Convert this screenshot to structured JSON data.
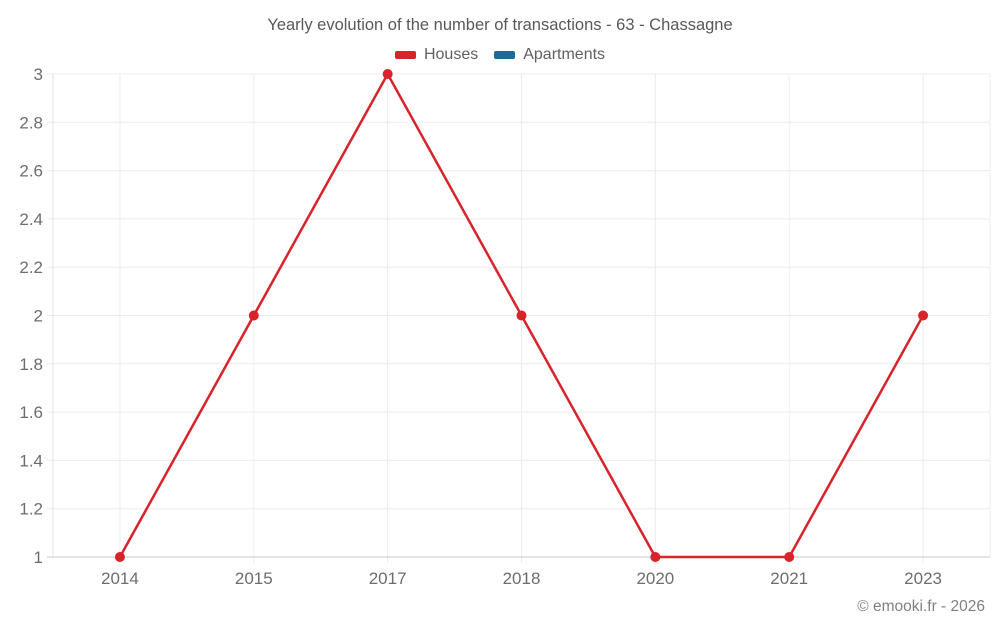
{
  "title": "Yearly evolution of the number of transactions - 63 - Chassagne",
  "footer": "© emooki.fr - 2026",
  "colors": {
    "houses": "#d8232a",
    "apartments": "#1a6d9a",
    "grid": "#ececec",
    "axis": "#c9c9c9",
    "tick_text": "#6d6d6d"
  },
  "chart_data": {
    "type": "line",
    "title": "Yearly evolution of the number of transactions - 63 - Chassagne",
    "categories": [
      "2014",
      "2015",
      "2017",
      "2018",
      "2020",
      "2021",
      "2023"
    ],
    "series": [
      {
        "name": "Houses",
        "color": "#d8232a",
        "values": [
          1,
          2,
          3,
          2,
          1,
          1,
          2
        ]
      },
      {
        "name": "Apartments",
        "color": "#1a6d9a",
        "values": []
      }
    ],
    "xlabel": "",
    "ylabel": "",
    "ylim": [
      1,
      3
    ],
    "ytick_step": 0.2,
    "grid": true,
    "legend_position": "top"
  }
}
